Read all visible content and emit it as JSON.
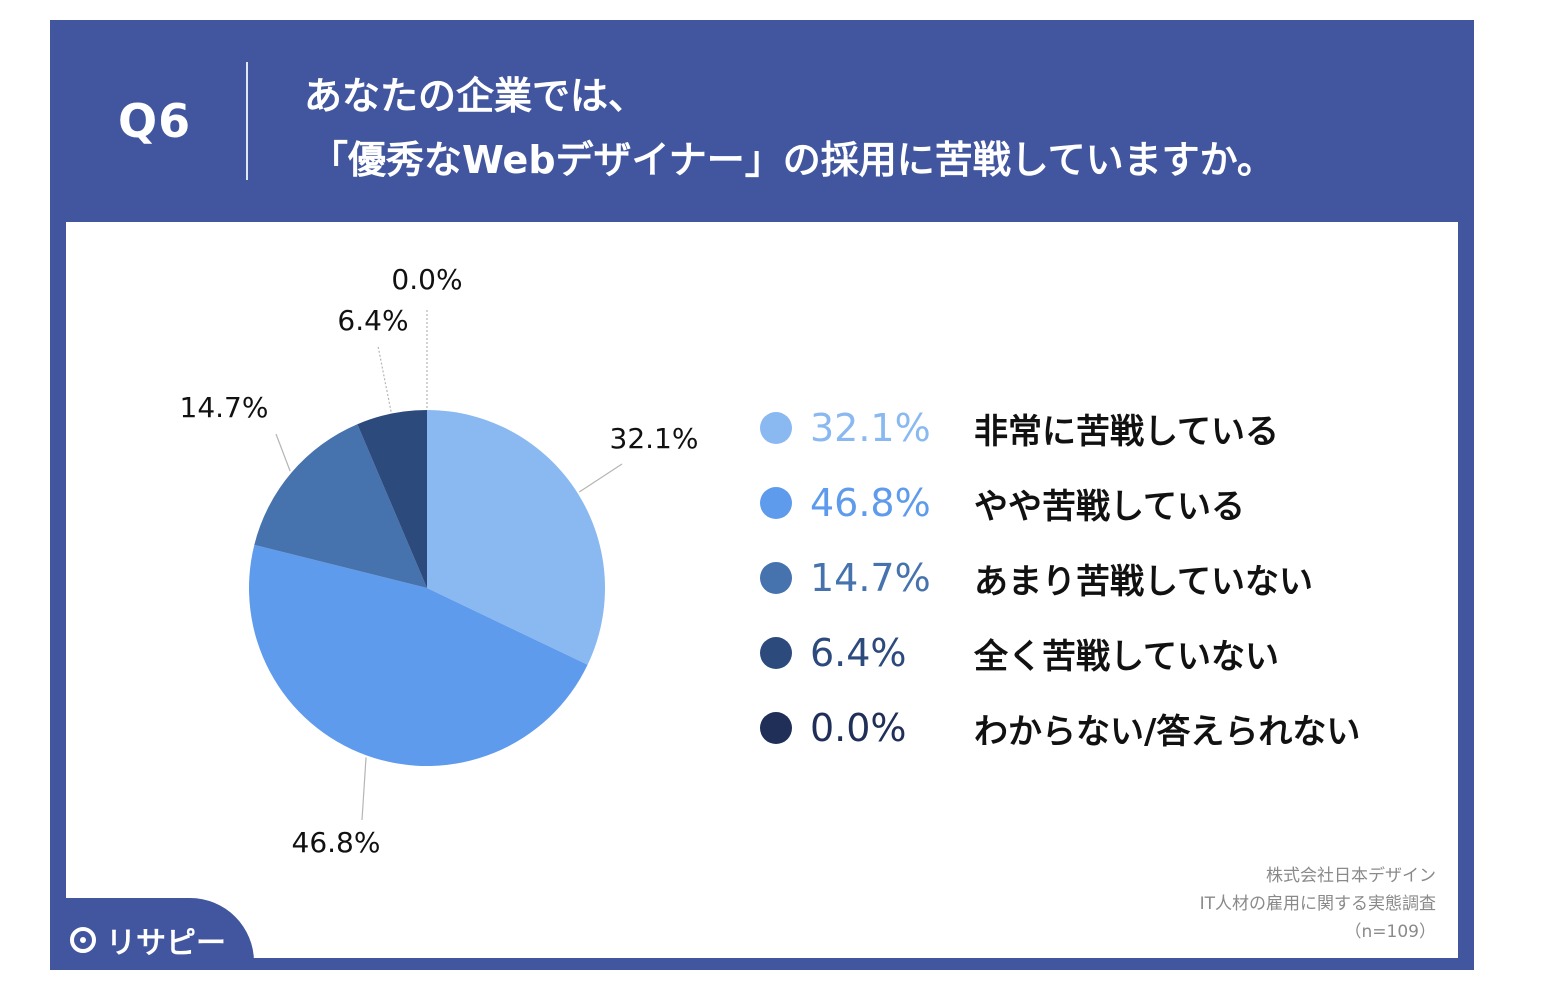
{
  "header": {
    "question_number": "Q6",
    "title_line1": "あなたの企業では、",
    "title_line2": "「優秀なWebデザイナー」の採用に苦戦していますか。"
  },
  "chart_data": {
    "type": "pie",
    "categories": [
      "非常に苦戦している",
      "やや苦戦している",
      "あまり苦戦していない",
      "全く苦戦していない",
      "わからない/答えられない"
    ],
    "values": [
      32.1,
      46.8,
      14.7,
      6.4,
      0.0
    ],
    "value_labels": [
      "32.1%",
      "46.8%",
      "14.7%",
      "6.4%",
      "0.0%"
    ],
    "colors": [
      "#8ab9f1",
      "#5f9bec",
      "#4672ad",
      "#2d4a7d",
      "#1f2f57"
    ],
    "legend_placement": "right"
  },
  "footer": {
    "source_line1": "株式会社日本デザイン",
    "source_line2": "IT人材の雇用に関する実態調査",
    "source_line3": "（n=109）",
    "brand_name": "リサピー"
  }
}
